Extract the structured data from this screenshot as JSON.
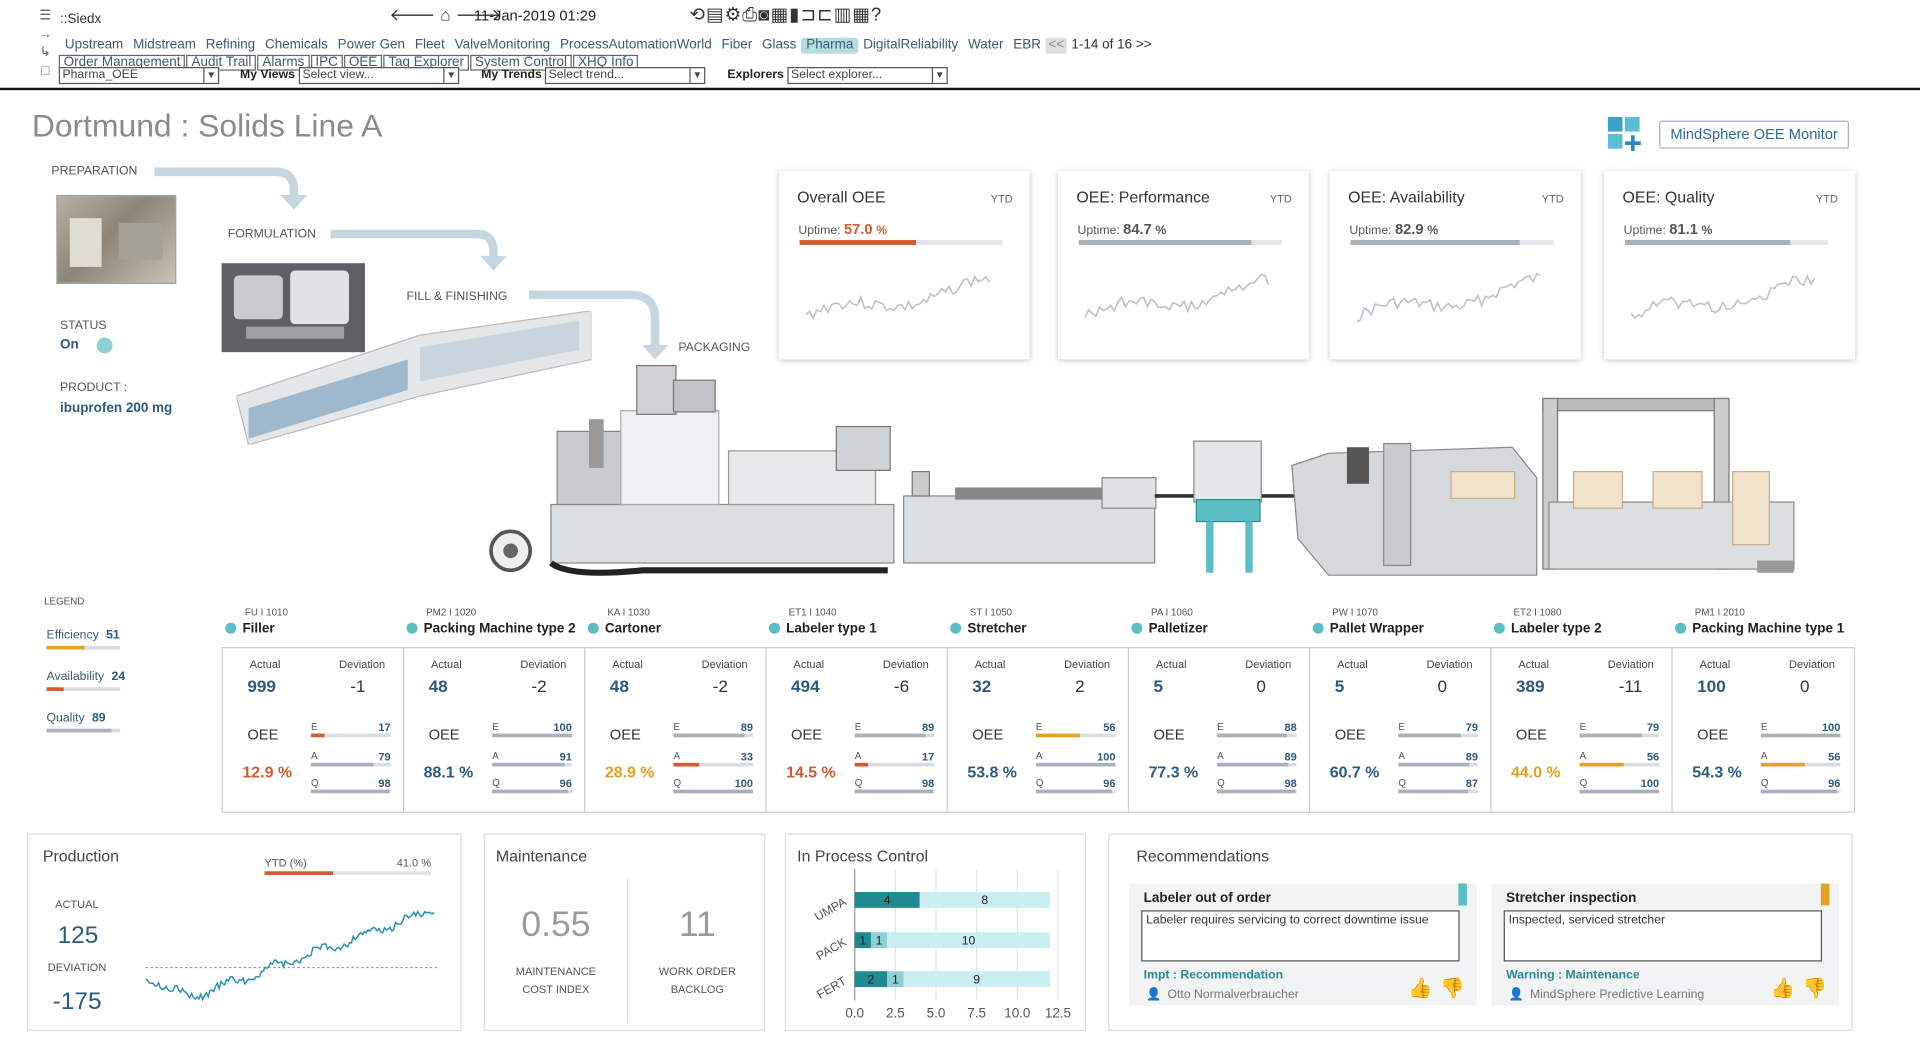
{
  "app": {
    "name": "::Siedx",
    "timestamp": "11-Jan-2019 01:29"
  },
  "nav": {
    "tabs": [
      "Upstream",
      "Midstream",
      "Refining",
      "Chemicals",
      "Power Gen",
      "Fleet",
      "ValveMonitoring",
      "ProcessAutomationWorld",
      "Fiber",
      "Glass",
      "Pharma",
      "DigitalReliability",
      "Water",
      "EBR"
    ],
    "active_tab": "Pharma",
    "pager_prev": "<<",
    "pager_text": "1-14 of 16 >>",
    "subtabs": [
      "Order Management",
      "Audit Trail",
      "Alarms",
      "IPC",
      "OEE",
      "Tag Explorer",
      "System Control",
      "XHQ Info"
    ]
  },
  "selectors": {
    "site_value": "Pharma_OEE",
    "views_label": "My Views",
    "views_placeholder": "Select view...",
    "trends_label": "My Trends",
    "trends_placeholder": "Select trend...",
    "explorers_label": "Explorers",
    "explorers_placeholder": "Select explorer..."
  },
  "page": {
    "title": "Dortmund : Solids Line A",
    "monitor_button": "MindSphere OEE Monitor"
  },
  "process": {
    "stages": [
      "PREPARATION",
      "FORMULATION",
      "FILL & FINISHING",
      "PACKAGING"
    ],
    "status_label": "STATUS",
    "status_value": "On",
    "product_label": "PRODUCT :",
    "product_value": "ibuprofen 200 mg"
  },
  "kpi_cards": [
    {
      "title": "Overall OEE",
      "period": "YTD",
      "uptime_label": "Uptime:",
      "uptime_value": "57.0",
      "unit": "%",
      "fraction": 0.57,
      "bar_color": "#d35b2f",
      "highlight": true
    },
    {
      "title": "OEE: Performance",
      "period": "YTD",
      "uptime_label": "Uptime:",
      "uptime_value": "84.7",
      "unit": "%",
      "fraction": 0.847,
      "bar_color": "#a7b0bb",
      "highlight": false
    },
    {
      "title": "OEE: Availability",
      "period": "YTD",
      "uptime_label": "Uptime:",
      "uptime_value": "82.9",
      "unit": "%",
      "fraction": 0.829,
      "bar_color": "#a7b0bb",
      "highlight": false
    },
    {
      "title": "OEE: Quality",
      "period": "YTD",
      "uptime_label": "Uptime:",
      "uptime_value": "81.1",
      "unit": "%",
      "fraction": 0.811,
      "bar_color": "#a7b0bb",
      "highlight": false
    }
  ],
  "legend": {
    "title": "LEGEND",
    "items": [
      {
        "label": "Efficiency",
        "value": "51",
        "fraction": 0.51,
        "color": "#e8a021"
      },
      {
        "label": "Availability",
        "value": "24",
        "fraction": 0.24,
        "color": "#d35b2f"
      },
      {
        "label": "Quality",
        "value": "89",
        "fraction": 0.89,
        "color": "#a7b0bb"
      }
    ]
  },
  "machines": [
    {
      "code": "FU I 1010",
      "name": "Filler",
      "actual": "999",
      "deviation": "-1",
      "oee": "12.9 %",
      "oee_color": "#d35b2f",
      "e": "17",
      "a": "79",
      "q": "98",
      "e_color": "#d35b2f",
      "a_color": "#a7b0bb",
      "q_color": "#a7b0bb"
    },
    {
      "code": "PM2 I 1020",
      "name": "Packing Machine type 2",
      "actual": "48",
      "deviation": "-2",
      "oee": "88.1 %",
      "oee_color": "#2d5a80",
      "e": "100",
      "a": "91",
      "q": "96",
      "e_color": "#a7b0bb",
      "a_color": "#a7b0bb",
      "q_color": "#a7b0bb"
    },
    {
      "code": "KA I 1030",
      "name": "Cartoner",
      "actual": "48",
      "deviation": "-2",
      "oee": "28.9 %",
      "oee_color": "#e8a021",
      "e": "89",
      "a": "33",
      "q": "100",
      "e_color": "#a7b0bb",
      "a_color": "#d35b2f",
      "q_color": "#a7b0bb"
    },
    {
      "code": "ET1 I 1040",
      "name": "Labeler type 1",
      "actual": "494",
      "deviation": "-6",
      "oee": "14.5 %",
      "oee_color": "#d35b2f",
      "e": "89",
      "a": "17",
      "q": "98",
      "e_color": "#a7b0bb",
      "a_color": "#d35b2f",
      "q_color": "#a7b0bb"
    },
    {
      "code": "ST I 1050",
      "name": "Stretcher",
      "actual": "32",
      "deviation": "2",
      "oee": "53.8 %",
      "oee_color": "#2d5a80",
      "e": "56",
      "a": "100",
      "q": "96",
      "e_color": "#e8a021",
      "a_color": "#a7b0bb",
      "q_color": "#a7b0bb"
    },
    {
      "code": "PA I 1060",
      "name": "Palletizer",
      "actual": "5",
      "deviation": "0",
      "oee": "77.3 %",
      "oee_color": "#2d5a80",
      "e": "88",
      "a": "89",
      "q": "98",
      "e_color": "#a7b0bb",
      "a_color": "#a7b0bb",
      "q_color": "#a7b0bb"
    },
    {
      "code": "PW I 1070",
      "name": "Pallet Wrapper",
      "actual": "5",
      "deviation": "0",
      "oee": "60.7 %",
      "oee_color": "#2d5a80",
      "e": "79",
      "a": "89",
      "q": "87",
      "e_color": "#a7b0bb",
      "a_color": "#a7b0bb",
      "q_color": "#a7b0bb"
    },
    {
      "code": "ET2 I 1080",
      "name": "Labeler type 2",
      "actual": "389",
      "deviation": "-11",
      "oee": "44.0 %",
      "oee_color": "#e8a021",
      "e": "79",
      "a": "56",
      "q": "100",
      "e_color": "#a7b0bb",
      "a_color": "#e8a021",
      "q_color": "#a7b0bb"
    },
    {
      "code": "PM1 I 2010",
      "name": "Packing Machine type 1",
      "actual": "100",
      "deviation": "0",
      "oee": "54.3 %",
      "oee_color": "#2d5a80",
      "e": "100",
      "a": "56",
      "q": "96",
      "e_color": "#a7b0bb",
      "a_color": "#e8a021",
      "q_color": "#a7b0bb"
    }
  ],
  "table_labels": {
    "actual": "Actual",
    "deviation": "Deviation",
    "oee": "OEE",
    "e": "E",
    "a": "A",
    "q": "Q"
  },
  "production": {
    "title": "Production",
    "ytd_label": "YTD (%)",
    "ytd_value": "41.0 %",
    "ytd_fraction": 0.41,
    "actual_label": "ACTUAL",
    "actual_value": "125",
    "deviation_label": "DEVIATION",
    "deviation_value": "-175"
  },
  "maintenance": {
    "title": "Maintenance",
    "cost_value": "0.55",
    "cost_label_1": "MAINTENANCE",
    "cost_label_2": "COST INDEX",
    "backlog_value": "11",
    "backlog_label_1": "WORK ORDER",
    "backlog_label_2": "BACKLOG"
  },
  "ipc": {
    "title": "In Process Control"
  },
  "chart_data": {
    "type": "bar",
    "orientation": "horizontal",
    "stacked": true,
    "categories": [
      "UMPA",
      "PACK",
      "FERT"
    ],
    "series": [
      {
        "values": [
          4,
          1,
          2
        ],
        "color": "#1f8a8f"
      },
      {
        "values": [
          0,
          1,
          1
        ],
        "color": "#8fd0d3"
      },
      {
        "values": [
          8,
          10,
          9
        ],
        "color": "#c9eef0"
      }
    ],
    "xlim": [
      0,
      12.5
    ],
    "xticks": [
      "0.0",
      "2.5",
      "5.0",
      "7.5",
      "10.0",
      "12.5"
    ]
  },
  "recommendations": {
    "title": "Recommendations",
    "items": [
      {
        "title": "Labeler out of order",
        "text": "Labeler requires servicing to correct downtime issue",
        "level": "Impt : Recommendation",
        "user": "Otto Normalverbraucher",
        "flag_color": "#5bbec4"
      },
      {
        "title": "Stretcher inspection",
        "text": "Inspected, serviced stretcher",
        "level": "Warning : Maintenance",
        "user": "MindSphere Predictive Learning",
        "flag_color": "#e8a021"
      }
    ]
  }
}
